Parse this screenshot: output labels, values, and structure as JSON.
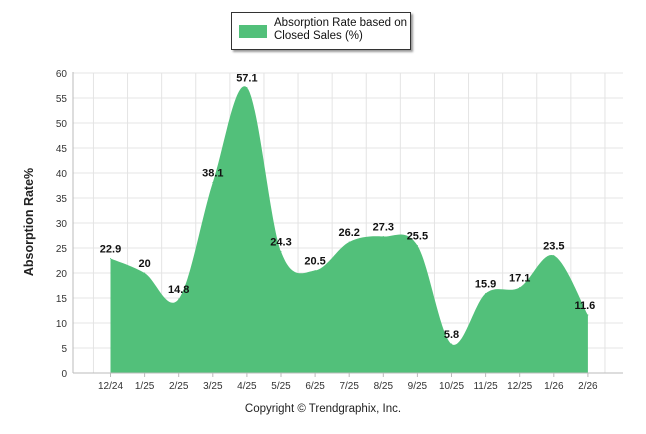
{
  "colors": {
    "area": "#52c07a",
    "grid": "#e4e4e4",
    "axis": "#bbbbbb",
    "text": "#333333",
    "label": "#111111"
  },
  "chart_data": {
    "type": "area",
    "categories": [
      "12/24",
      "1/25",
      "2/25",
      "3/25",
      "4/25",
      "5/25",
      "6/25",
      "7/25",
      "8/25",
      "9/25",
      "10/25",
      "11/25",
      "12/25",
      "1/26",
      "2/26"
    ],
    "series": [
      {
        "name": "Absorption Rate based on Closed Sales (%)",
        "values": [
          22.9,
          20,
          14.8,
          38.1,
          57.1,
          24.3,
          20.5,
          26.2,
          27.3,
          25.5,
          5.8,
          15.9,
          17.1,
          23.5,
          11.6
        ]
      }
    ],
    "data_labels": [
      "22.9",
      "20",
      "14.8",
      "38.1",
      "57.1",
      "24.3",
      "20.5",
      "26.2",
      "27.3",
      "25.5",
      "5.8",
      "15.9",
      "17.1",
      "23.5",
      "11.6"
    ],
    "ylabel": "Absorption Rate%",
    "xlabel": "",
    "ylim": [
      0,
      60
    ],
    "yticks": [
      "0",
      "5",
      "10",
      "15",
      "20",
      "25",
      "30",
      "35",
      "40",
      "45",
      "50",
      "55",
      "60"
    ],
    "grid": true,
    "legend_position": "top-center"
  },
  "legend": {
    "label": "Absorption Rate based on Closed Sales (%)"
  },
  "footer": {
    "copyright": "Copyright © Trendgraphix, Inc."
  }
}
